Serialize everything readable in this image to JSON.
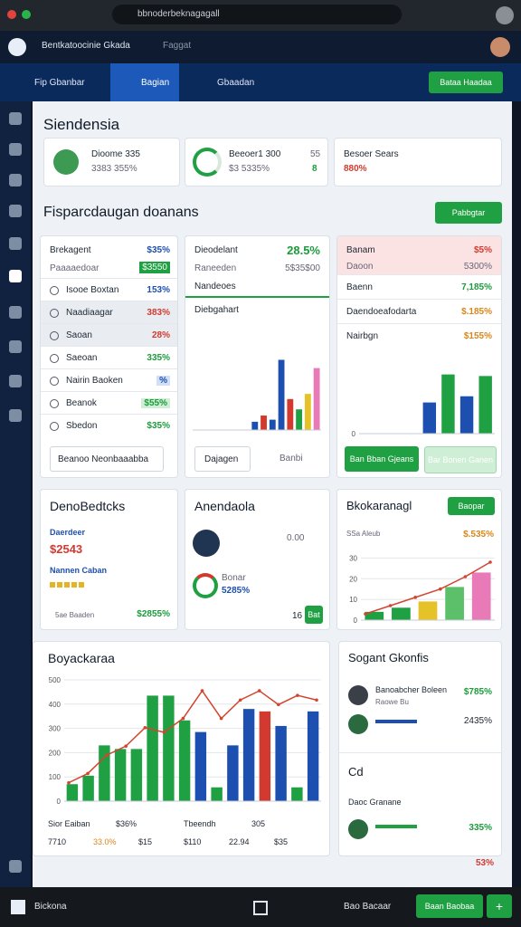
{
  "browser": {
    "url": "bbnoderbeknagagall"
  },
  "header": {
    "title": "Bentkatoocinie Gkada",
    "subtitle": "Faggat"
  },
  "nav": {
    "tabs": [
      "Fip Gbanbar",
      "Bagian",
      "Gbaadan"
    ],
    "button": "Bataa Haadaa"
  },
  "page_title": "Siendensia",
  "summary": [
    {
      "title": "Dioome 335",
      "value": "3383 355%"
    },
    {
      "title": "Beeoer1 300",
      "value": "$3 5335%",
      "side_top": "55",
      "side_bottom": "8"
    },
    {
      "title": "Besoer Sears",
      "value": "880%"
    }
  ],
  "section": {
    "title": "Fisparcdaugan doanans",
    "button": "Pabbgtar"
  },
  "list_panel": {
    "header": {
      "label": "Brekagent",
      "value": "$35%"
    },
    "sub": {
      "label": "Paaaaedoar",
      "badge": "$3550"
    },
    "rows": [
      {
        "label": "Isooe Boxtan",
        "value": "153%"
      },
      {
        "label": "Naadiaagar",
        "value": "383%"
      },
      {
        "label": "Saoan",
        "value": "28%"
      },
      {
        "label": "Saeoan",
        "value": "335%"
      },
      {
        "label": "Nairin Baoken",
        "value": "%"
      },
      {
        "label": "Beanok",
        "value": "$55%"
      },
      {
        "label": "Sbedon",
        "value": "$35%"
      }
    ],
    "select": "Beanoo Neonbaaabba"
  },
  "trend_panel": {
    "title": "Dieodelant",
    "value": "28.5%",
    "sub_label": "Raneeden",
    "sub_value": "5$35$00",
    "note": "Nandeoes",
    "chart_label": "Diebgahart",
    "chart": {
      "ylim": [
        0,
        100
      ],
      "values": [
        8,
        14,
        10,
        68,
        30,
        20,
        35,
        60
      ],
      "colors": [
        "#1d4fb0",
        "#d23a2f",
        "#1d4fb0",
        "#1d4fb0",
        "#d23a2f",
        "#1fa043",
        "#e6c229",
        "#e87ab8"
      ]
    },
    "buttons": [
      "Dajagen",
      "Banbi"
    ]
  },
  "status_panel": {
    "header": {
      "label": "Banam",
      "value": "$5%"
    },
    "sub": {
      "label": "Daoon",
      "value": "5300%"
    },
    "rows": [
      {
        "label": "Baenn",
        "value": "7,185%"
      },
      {
        "label": "Daendoeafodarta",
        "value": "$.185%"
      },
      {
        "label": "Nairbgn",
        "value": "$155%"
      }
    ],
    "chart": {
      "ylim": [
        0,
        100
      ],
      "yticks": [
        0
      ],
      "values": [
        40,
        76,
        48,
        74
      ],
      "colors": [
        "#1d4fb0",
        "#1fa043",
        "#1d4fb0",
        "#1fa043"
      ]
    },
    "buttons": [
      "Ban Bban Gjeans",
      "Bar Bonen Ganen"
    ]
  },
  "deals": {
    "title": "DenoBedtcks",
    "label": "Daerdeer",
    "value": "$2543",
    "link": "Nannen Caban",
    "foot_label": "5ae Baaden",
    "foot_value": "$2855%"
  },
  "agenda": {
    "title": "Anendaola",
    "avatar_value": "0.00",
    "ring_label": "Bonar",
    "ring_value": "5285%",
    "count": "16",
    "button": "Bat"
  },
  "stock": {
    "title": "Bkokaranagl",
    "button": "Baopar",
    "chart_label": "SSa Aleub",
    "value": "$.535%",
    "chart": {
      "ylim": [
        0,
        35
      ],
      "yticks": [
        0,
        10,
        20,
        30
      ],
      "values": [
        4,
        6,
        9,
        16,
        23
      ],
      "colors": [
        "#1fa043",
        "#1fa043",
        "#e6c229",
        "#5cc06a",
        "#e87ab8"
      ],
      "line": [
        3,
        7,
        11,
        15,
        21,
        28
      ]
    }
  },
  "big": {
    "title": "Boyackaraa",
    "chart": {
      "ylim": [
        0,
        500
      ],
      "yticks": [
        0,
        100,
        200,
        300,
        400,
        500
      ],
      "values": [
        70,
        105,
        230,
        215,
        215,
        435,
        435,
        333,
        285,
        57,
        230,
        380,
        370,
        310,
        57,
        370
      ],
      "colors": [
        "#1fa043",
        "#1fa043",
        "#1fa043",
        "#1fa043",
        "#1fa043",
        "#1fa043",
        "#1fa043",
        "#1fa043",
        "#1d4fb0",
        "#1fa043",
        "#1d4fb0",
        "#1d4fb0",
        "#d23a2f",
        "#1d4fb0",
        "#1fa043",
        "#1d4fb0"
      ],
      "line": [
        76,
        114,
        190,
        227,
        303,
        284,
        341,
        455,
        341,
        417,
        455,
        398,
        436,
        417
      ]
    },
    "footer": [
      [
        "Sior Eaiban",
        "$36%",
        "Tbeendh",
        "305"
      ],
      [
        "7710",
        "33.0%",
        "$15",
        "$110",
        "22.94",
        "$35"
      ]
    ]
  },
  "side": {
    "title": "Sogant Gkonfis",
    "people": [
      {
        "name": "Banoabcher Boleen",
        "sub": "Raowe Bu",
        "value": "$785%"
      },
      {
        "value": "2435%"
      }
    ],
    "section": "Cd",
    "item": "Daoc Granane",
    "row_value": "335%",
    "last_value": "53%"
  },
  "taskbar": {
    "label": "Bickona",
    "app": "Bao Bacaar",
    "button": "Baan Baobaa",
    "plus": "+"
  }
}
